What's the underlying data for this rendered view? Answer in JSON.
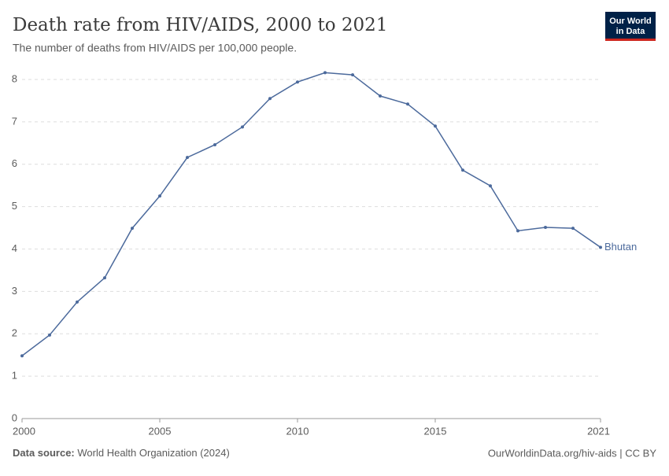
{
  "logo": [
    "Our World",
    "in Data"
  ],
  "source_label": "Data source:",
  "source": "World Health Organization (2024)",
  "url": "OurWorldinData.org/hiv-aids | CC BY",
  "chart_data": {
    "type": "line",
    "title": "Death rate from HIV/AIDS, 2000 to 2021",
    "subtitle": "The number of deaths from HIV/AIDS per 100,000 people.",
    "x": [
      2000,
      2001,
      2002,
      2003,
      2004,
      2005,
      2006,
      2007,
      2008,
      2009,
      2010,
      2011,
      2012,
      2013,
      2014,
      2015,
      2016,
      2017,
      2018,
      2019,
      2020,
      2021
    ],
    "series": [
      {
        "name": "Bhutan",
        "color": "#4c6a9c",
        "values": [
          1.48,
          1.97,
          2.75,
          3.32,
          4.49,
          5.25,
          6.16,
          6.46,
          6.88,
          7.55,
          7.94,
          8.16,
          8.11,
          7.61,
          7.42,
          6.9,
          5.86,
          5.49,
          4.43,
          4.51,
          4.49,
          4.04
        ]
      }
    ],
    "xlim": [
      2000,
      2021
    ],
    "xticks": [
      2000,
      2005,
      2010,
      2015,
      2021
    ],
    "ylim": [
      0,
      8
    ],
    "yticks": [
      0,
      1,
      2,
      3,
      4,
      5,
      6,
      7,
      8
    ],
    "grid": true
  }
}
